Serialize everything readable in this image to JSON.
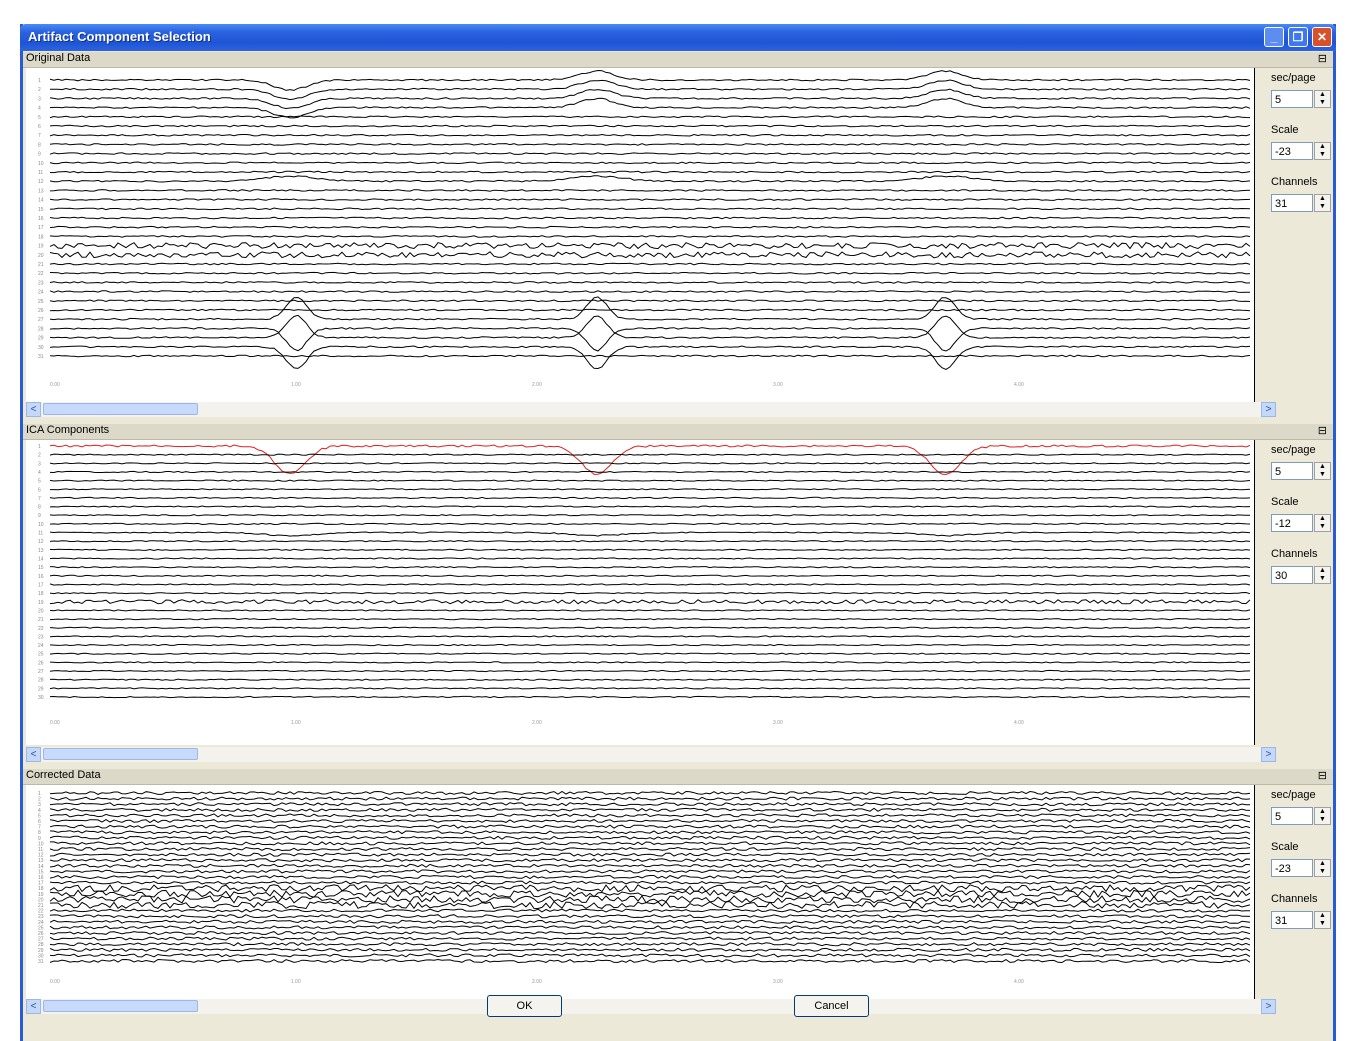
{
  "window": {
    "title": "Artifact Component Selection",
    "controls": {
      "minimize": "_",
      "restore": "❐",
      "close": "✕"
    }
  },
  "panels": [
    {
      "title": "Original Data",
      "controls": [
        {
          "label": "sec/page",
          "value": "5"
        },
        {
          "label": "Scale",
          "value": "-23"
        },
        {
          "label": "Channels",
          "value": "31"
        }
      ],
      "time_ticks": [
        "0.00",
        "1.00",
        "2.00",
        "3.00",
        "4.00"
      ]
    },
    {
      "title": "ICA Components",
      "controls": [
        {
          "label": "sec/page",
          "value": "5"
        },
        {
          "label": "Scale",
          "value": "-12"
        },
        {
          "label": "Channels",
          "value": "30"
        }
      ],
      "time_ticks": [
        "0.00",
        "1.00",
        "2.00",
        "3.00",
        "4.00"
      ]
    },
    {
      "title": "Corrected Data",
      "controls": [
        {
          "label": "sec/page",
          "value": "5"
        },
        {
          "label": "Scale",
          "value": "-23"
        },
        {
          "label": "Channels",
          "value": "31"
        }
      ],
      "time_ticks": [
        "0.00",
        "1.00",
        "2.00",
        "3.00",
        "4.00"
      ]
    }
  ],
  "buttons": {
    "ok": "OK",
    "cancel": "Cancel"
  },
  "colors": {
    "trace": "#000000",
    "selected_component": "#e02020",
    "titlebar": "#2a63e0"
  },
  "icons": {
    "collapse": "panel-collapse-icon",
    "scroll_left": "scroll-left-icon",
    "scroll_right": "scroll-right-icon"
  }
}
